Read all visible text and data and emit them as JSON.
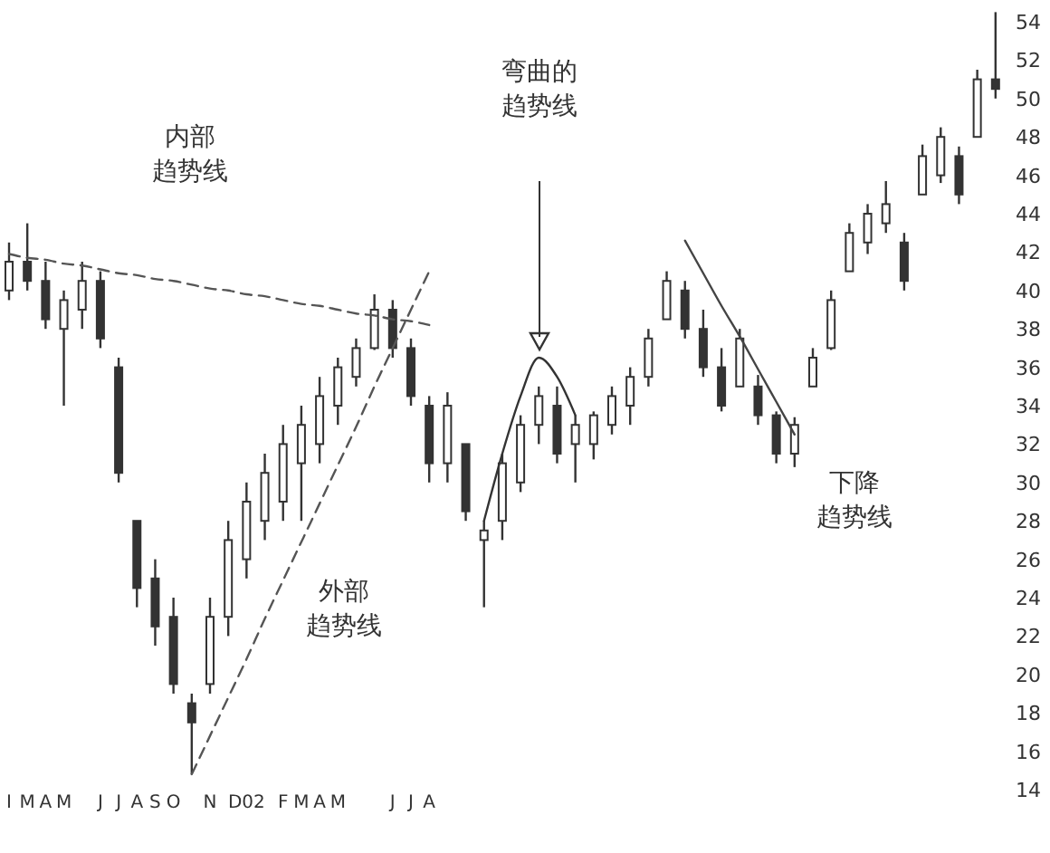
{
  "chart_data": {
    "type": "candlestick",
    "color": "#333333",
    "categories": [
      "I",
      "M",
      "A",
      "M",
      null,
      "J",
      "J",
      "A",
      "S",
      "O",
      null,
      "N",
      null,
      "D02",
      null,
      "F",
      "M",
      "A",
      "M",
      null,
      null,
      "J",
      "J",
      "A",
      null,
      null,
      null,
      null,
      null,
      null,
      null,
      null,
      null,
      null,
      null,
      null,
      null,
      null,
      null,
      null,
      null,
      null,
      null,
      null,
      null,
      null,
      null,
      null,
      null,
      null,
      null,
      null,
      null,
      null,
      null
    ],
    "ohlc": [
      [
        40,
        42.5,
        39.5,
        41.5
      ],
      [
        41.5,
        43.5,
        40,
        40.5
      ],
      [
        40.5,
        41.5,
        38,
        38.5
      ],
      [
        38,
        40,
        34,
        39.5
      ],
      [
        39,
        41.5,
        38,
        40.5
      ],
      [
        40.5,
        41,
        37,
        37.5
      ],
      [
        36,
        36.5,
        30,
        30.5
      ],
      [
        28,
        28,
        23.5,
        24.5
      ],
      [
        25,
        26,
        21.5,
        22.5
      ],
      [
        23,
        24,
        19,
        19.5
      ],
      [
        18.5,
        19,
        14.8,
        17.5
      ],
      [
        19.5,
        24,
        19,
        23
      ],
      [
        23,
        28,
        22,
        27
      ],
      [
        26,
        30,
        25,
        29
      ],
      [
        28,
        31.5,
        27,
        30.5
      ],
      [
        29,
        33,
        28,
        32
      ],
      [
        31,
        34,
        28,
        33
      ],
      [
        32,
        35.5,
        31,
        34.5
      ],
      [
        34,
        36.5,
        33,
        36
      ],
      [
        35.5,
        37.5,
        35,
        37
      ],
      [
        37,
        39.8,
        36.9,
        39
      ],
      [
        39,
        39.5,
        36.5,
        37
      ],
      [
        37,
        37.5,
        34,
        34.5
      ],
      [
        34,
        34.5,
        30,
        31
      ],
      [
        31,
        34.7,
        30,
        34
      ],
      [
        32,
        32,
        28,
        28.5
      ],
      [
        27,
        28,
        23.5,
        27.5
      ],
      [
        28,
        31.5,
        27,
        31
      ],
      [
        30,
        33.5,
        29.5,
        33
      ],
      [
        33,
        35,
        32,
        34.5
      ],
      [
        34,
        35,
        31,
        31.5
      ],
      [
        32,
        33.5,
        30,
        33
      ],
      [
        32,
        33.7,
        31.2,
        33.5
      ],
      [
        33,
        35,
        32.5,
        34.5
      ],
      [
        34,
        36,
        33,
        35.5
      ],
      [
        35.5,
        38,
        35,
        37.5
      ],
      [
        38.5,
        41,
        38.5,
        40.5
      ],
      [
        40,
        40.5,
        37.5,
        38
      ],
      [
        38,
        39,
        35.5,
        36
      ],
      [
        36,
        37,
        33.7,
        34
      ],
      [
        35,
        38,
        35,
        37.5
      ],
      [
        35,
        35.6,
        33,
        33.5
      ],
      [
        33.5,
        33.7,
        31,
        31.5
      ],
      [
        31.5,
        33.4,
        30.8,
        33
      ],
      [
        35,
        37,
        35,
        36.5
      ],
      [
        37,
        40,
        36.9,
        39.5
      ],
      [
        41,
        43.5,
        41,
        43
      ],
      [
        42.5,
        44.5,
        41.9,
        44
      ],
      [
        43.5,
        45.7,
        43,
        44.5
      ],
      [
        42.5,
        43,
        40,
        40.5
      ],
      [
        45,
        47.6,
        45,
        47
      ],
      [
        46,
        48.5,
        45.6,
        48
      ],
      [
        47,
        47.5,
        44.5,
        45
      ],
      [
        48,
        51.5,
        48,
        51
      ],
      [
        51,
        54.5,
        50,
        50.5
      ]
    ],
    "series": [
      {
        "type": "line",
        "color": "#555555",
        "line_style": "dashed",
        "values": [
          41.9,
          41.7,
          41.6,
          41.4,
          41.3,
          41.1,
          40.9,
          40.8,
          40.6,
          40.5,
          40.3,
          40.1,
          40.0,
          39.8,
          39.7,
          39.5,
          39.3,
          39.2,
          39.0,
          38.8,
          38.7,
          38.5,
          38.4,
          38.2,
          null,
          null,
          null,
          null,
          null,
          null,
          null,
          null,
          null,
          null,
          null,
          null,
          null,
          null,
          null,
          null,
          null,
          null,
          null,
          null,
          null,
          null,
          null,
          null,
          null,
          null,
          null,
          null,
          null,
          null,
          null
        ]
      },
      {
        "type": "line",
        "color": "#555555",
        "line_style": "dashed",
        "values": [
          null,
          null,
          null,
          null,
          null,
          null,
          null,
          null,
          null,
          null,
          14.8,
          16.8,
          18.8,
          20.8,
          22.9,
          24.9,
          26.9,
          28.9,
          30.9,
          32.9,
          35.0,
          37.0,
          39.0,
          41.0,
          null,
          null,
          null,
          null,
          null,
          null,
          null,
          null,
          null,
          null,
          null,
          null,
          null,
          null,
          null,
          null,
          null,
          null,
          null,
          null,
          null,
          null,
          null,
          null,
          null,
          null,
          null,
          null,
          null,
          null,
          null
        ]
      },
      {
        "type": "line",
        "color": "#333333",
        "line_style": "solid",
        "values": [
          null,
          null,
          null,
          null,
          null,
          null,
          null,
          null,
          null,
          null,
          null,
          null,
          null,
          null,
          null,
          null,
          null,
          null,
          null,
          null,
          null,
          null,
          null,
          null,
          null,
          null,
          28,
          31.5,
          34.5,
          36.5,
          35.5,
          33.5,
          null,
          null,
          null,
          null,
          null,
          null,
          null,
          null,
          null,
          null,
          null,
          null,
          null,
          null,
          null,
          null,
          null,
          null,
          null,
          null,
          null,
          null,
          null
        ]
      },
      {
        "type": "line",
        "color": "#444444",
        "line_style": "solid",
        "values": [
          null,
          null,
          null,
          null,
          null,
          null,
          null,
          null,
          null,
          null,
          null,
          null,
          null,
          null,
          null,
          null,
          null,
          null,
          null,
          null,
          null,
          null,
          null,
          null,
          null,
          null,
          null,
          null,
          null,
          null,
          null,
          null,
          null,
          null,
          null,
          null,
          null,
          42.6,
          40.9,
          39.2,
          37.6,
          35.9,
          34.2,
          32.5,
          null,
          null,
          null,
          null,
          null,
          null,
          null,
          null,
          null,
          null,
          null
        ]
      }
    ],
    "annotations": [
      "内部趋势线",
      "外部趋势线",
      "弯曲的趋势线",
      "下降趋势线"
    ],
    "ylim": [
      14,
      55
    ],
    "yticks": [
      14,
      16,
      18,
      20,
      22,
      24,
      26,
      28,
      30,
      32,
      34,
      36,
      38,
      40,
      42,
      44,
      46,
      48,
      50,
      52,
      54
    ],
    "grid": false
  }
}
